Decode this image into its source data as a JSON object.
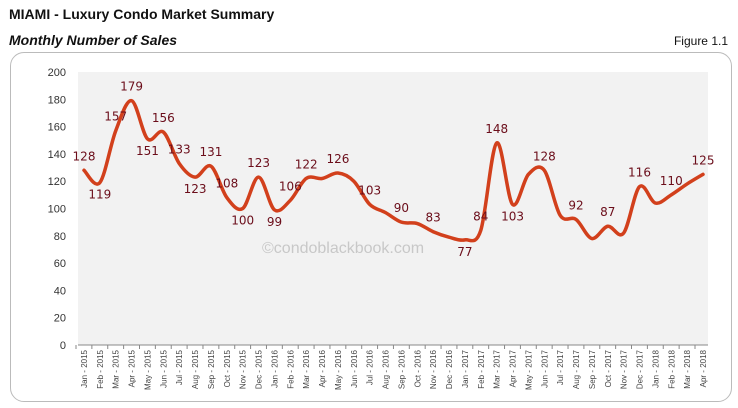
{
  "header": {
    "title": "MIAMI - Luxury Condo Market Summary",
    "subtitle": "Monthly Number of Sales",
    "figure": "Figure 1.1"
  },
  "watermark": "©condoblackbook.com",
  "chart_data": {
    "type": "line",
    "title": "Monthly Number of Sales",
    "xlabel": "",
    "ylabel": "",
    "ylim": [
      0,
      200
    ],
    "yticks": [
      0,
      20,
      40,
      60,
      80,
      100,
      120,
      140,
      160,
      180,
      200
    ],
    "grid": false,
    "line_color": "#d2401c",
    "label_color": "#6b0d1a",
    "background": "#f2f2f2",
    "categories": [
      "Jan - 2015",
      "Feb - 2015",
      "Mar - 2015",
      "Apr - 2015",
      "May - 2015",
      "Jun - 2015",
      "Jul - 2015",
      "Aug - 2015",
      "Sep - 2015",
      "Oct - 2015",
      "Nov - 2015",
      "Dec - 2015",
      "Jan - 2016",
      "Feb - 2016",
      "Mar - 2016",
      "Apr - 2016",
      "May - 2016",
      "Jun - 2016",
      "Jul - 2016",
      "Aug - 2016",
      "Sep - 2016",
      "Oct - 2016",
      "Nov - 2016",
      "Dec - 2016",
      "Jan - 2017",
      "Feb - 2017",
      "Mar - 2017",
      "Apr - 2017",
      "May - 2017",
      "Jun - 2017",
      "Jul - 2017",
      "Aug - 2017",
      "Sep - 2017",
      "Oct - 2017",
      "Nov - 2017",
      "Dec - 2017",
      "Jan - 2018",
      "Feb - 2018",
      "Mar - 2018",
      "Apr - 2018"
    ],
    "values": [
      128,
      119,
      157,
      179,
      151,
      156,
      133,
      123,
      131,
      108,
      100,
      123,
      99,
      106,
      122,
      122,
      126,
      120,
      103,
      97,
      90,
      89,
      83,
      79,
      77,
      84,
      148,
      103,
      125,
      128,
      95,
      92,
      78,
      87,
      82,
      116,
      104,
      110,
      118,
      125
    ],
    "data_labels": [
      "128",
      "119",
      "157",
      "179",
      "151",
      "156",
      "133",
      "123",
      "131",
      "108",
      "100",
      "123",
      "99",
      "106",
      "122",
      null,
      "126",
      null,
      "103",
      null,
      "90",
      null,
      "83",
      null,
      "77",
      "84",
      "148",
      "103",
      null,
      "128",
      null,
      "92",
      null,
      "87",
      null,
      "116",
      null,
      "110",
      null,
      "125"
    ]
  }
}
